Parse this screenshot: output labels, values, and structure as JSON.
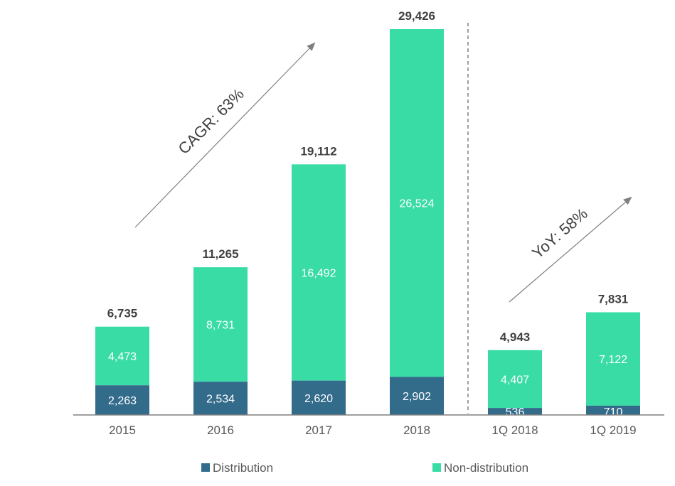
{
  "chart_data": {
    "type": "bar",
    "stacked": true,
    "categories": [
      "2015",
      "2016",
      "2017",
      "2018",
      "1Q 2018",
      "1Q 2019"
    ],
    "series": [
      {
        "name": "Distribution",
        "values": [
          2263,
          2534,
          2620,
          2902,
          536,
          710
        ],
        "labels": [
          "2,263",
          "2,534",
          "2,620",
          "2,902",
          "536",
          "710"
        ]
      },
      {
        "name": "Non-distribution",
        "values": [
          4473,
          8731,
          16492,
          26524,
          4407,
          7122
        ],
        "labels": [
          "4,473",
          "8,731",
          "16,492",
          "26,524",
          "4,407",
          "7,122"
        ]
      }
    ],
    "totals": [
      6735,
      11265,
      19112,
      29426,
      4943,
      7831
    ],
    "total_labels": [
      "6,735",
      "11,265",
      "19,112",
      "29,426",
      "4,943",
      "7,831"
    ],
    "annotations": [
      {
        "text": "CAGR: 63%",
        "from_category": "2015",
        "to_category": "2018"
      },
      {
        "text": "YoY: 58%",
        "from_category": "1Q 2018",
        "to_category": "1Q 2019"
      }
    ],
    "ylim": [
      0,
      29426
    ],
    "grid": false,
    "legend_position": "bottom",
    "colors": {
      "Distribution": "#336b8b",
      "Non-distribution": "#3adca6",
      "axis": "#808080",
      "divider": "#808080",
      "arrow": "#7f7f7f"
    }
  }
}
